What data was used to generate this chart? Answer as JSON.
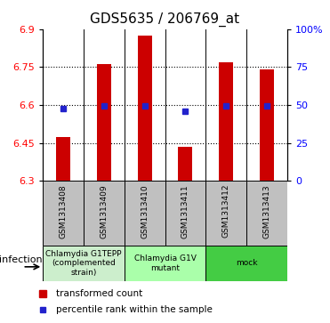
{
  "title": "GDS5635 / 206769_at",
  "samples": [
    "GSM1313408",
    "GSM1313409",
    "GSM1313410",
    "GSM1313411",
    "GSM1313412",
    "GSM1313413"
  ],
  "bar_values": [
    6.475,
    6.76,
    6.875,
    6.435,
    6.77,
    6.74
  ],
  "bar_bottom": 6.3,
  "percentile_values": [
    6.585,
    6.595,
    6.597,
    6.577,
    6.597,
    6.596
  ],
  "ylim": [
    6.3,
    6.9
  ],
  "yticks_left": [
    6.3,
    6.45,
    6.6,
    6.75,
    6.9
  ],
  "yticks_right": [
    0,
    25,
    50,
    75,
    100
  ],
  "bar_color": "#CC0000",
  "dot_color": "#2222CC",
  "background_color": "#FFFFFF",
  "group_defs": [
    {
      "indices": [
        0,
        1
      ],
      "label": "Chlamydia G1TEPP\n(complemented\nstrain)",
      "color": "#CCEECC"
    },
    {
      "indices": [
        2,
        3
      ],
      "label": "Chlamydia G1V\nmutant",
      "color": "#AAFFAA"
    },
    {
      "indices": [
        4,
        5
      ],
      "label": "mock",
      "color": "#44CC44"
    }
  ],
  "group_row_label": "infection",
  "legend_bar_label": "transformed count",
  "legend_dot_label": "percentile rank within the sample",
  "title_fontsize": 11,
  "tick_fontsize": 8,
  "bar_width": 0.35,
  "sample_box_color": "#C0C0C0",
  "sample_fontsize": 6.5
}
